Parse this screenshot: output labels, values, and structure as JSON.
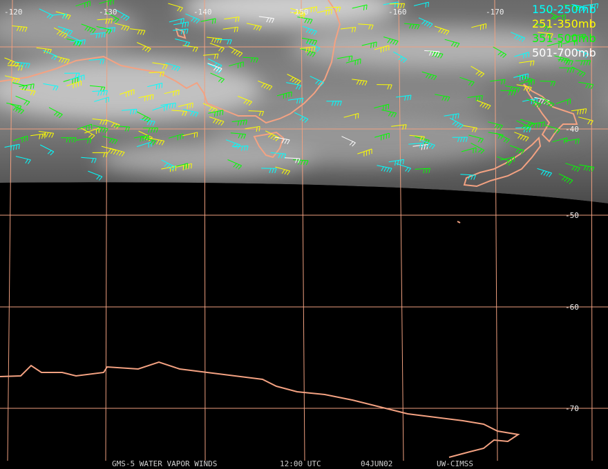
{
  "map": {
    "lon_labels": [
      "-120",
      "-130",
      "-140",
      "-150",
      "-160",
      "-170"
    ],
    "lat_labels": [
      "-40",
      "-50",
      "-60",
      "-70"
    ],
    "legend": [
      {
        "label": "150-250mb",
        "color": "#00ffff"
      },
      {
        "label": "251-350mb",
        "color": "#ffff00"
      },
      {
        "label": "351-500mb",
        "color": "#00ff00"
      },
      {
        "label": "501-700mb",
        "color": "#ffffff"
      }
    ],
    "footer": [
      "GMS-5 WATER VAPOR WINDS",
      "12:00 UTC",
      "04JUN02",
      "UW-CIMSS"
    ]
  }
}
